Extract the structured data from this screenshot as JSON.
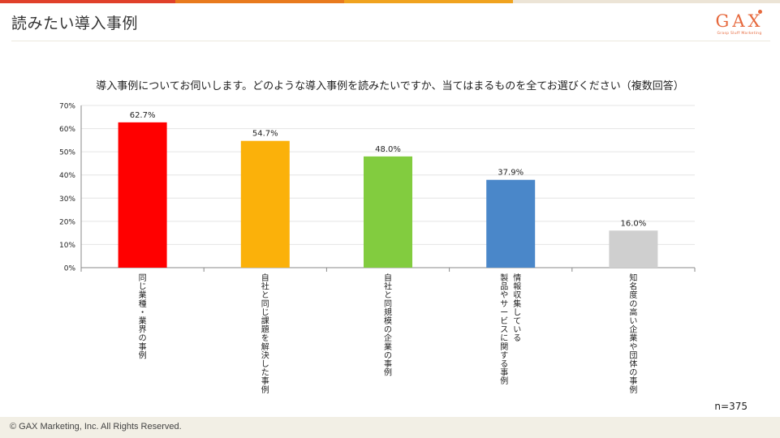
{
  "page": {
    "title": "読みたい導入事例",
    "logo_text": "GAX",
    "logo_sub": "Grasp Sluff Marketing",
    "footer": "© GAX Marketing, Inc. All Rights Reserved.",
    "n_label": "n=375",
    "topbar_colors": [
      "#e0402a",
      "#e87a1e",
      "#f0a31f",
      "#ece4d6"
    ]
  },
  "chart_data": {
    "type": "bar",
    "title": "導入事例についてお伺いします。どのような導入事例を読みたいですか、当てはまるものを全てお選びください（複数回答）",
    "categories": [
      [
        "同じ業種・業界の事例"
      ],
      [
        "自社と同じ課題を解決した事例"
      ],
      [
        "自社と同規模の企業の事例"
      ],
      [
        "情報収集している",
        "製品やサービスに関する事例"
      ],
      [
        "知名度の高い企業や団体の事例"
      ]
    ],
    "values": [
      62.7,
      54.7,
      48.0,
      37.9,
      16.0
    ],
    "value_labels": [
      "62.7%",
      "54.7%",
      "48.0%",
      "37.9%",
      "16.0%"
    ],
    "colors": [
      "#ff0000",
      "#fbb10a",
      "#82cc3f",
      "#4a87c9",
      "#cfcfcf"
    ],
    "ylim": [
      0,
      70
    ],
    "yticks": [
      0,
      10,
      20,
      30,
      40,
      50,
      60,
      70
    ],
    "ytick_labels": [
      "0%",
      "10%",
      "20%",
      "30%",
      "40%",
      "50%",
      "60%",
      "70%"
    ],
    "grid": true
  }
}
